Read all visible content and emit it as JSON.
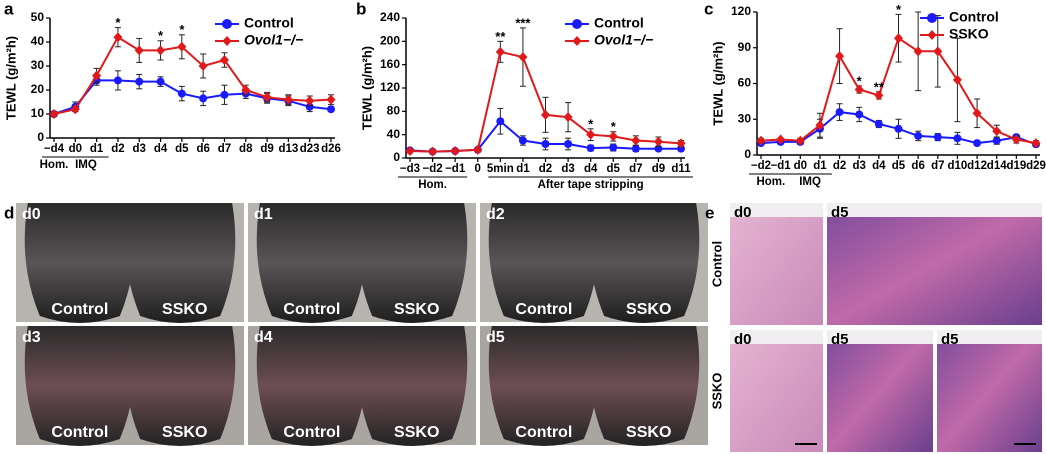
{
  "chart_data": [
    {
      "type": "line",
      "panel": "a",
      "ylabel": "TEWL (g/m²h)",
      "categories": [
        "−d4",
        "d0",
        "d1",
        "d2",
        "d3",
        "d4",
        "d5",
        "d6",
        "d7",
        "d8",
        "d9",
        "d13",
        "d23",
        "d26"
      ],
      "x_groups": [
        {
          "label": "Hom.",
          "from": 0,
          "to": 0
        },
        {
          "label": "IMQ",
          "from": 1,
          "to": 2
        }
      ],
      "ylim": [
        0,
        50
      ],
      "yticks": [
        0,
        10,
        20,
        30,
        40,
        50
      ],
      "legend": "upper right",
      "series": [
        {
          "name": "Control",
          "color": "#1a1aff",
          "marker": "circle",
          "font_style": "normal",
          "values": [
            10,
            13,
            24,
            24,
            23.5,
            23.5,
            18.5,
            16.5,
            18,
            18.5,
            16.5,
            15.5,
            13,
            12
          ],
          "errors": [
            1,
            2,
            2,
            4,
            3,
            2,
            3,
            3,
            4,
            2,
            2,
            2,
            2,
            1
          ]
        },
        {
          "name": "Ovol1−/−",
          "color": "#e01a1a",
          "marker": "diamond",
          "font_style": "italic",
          "values": [
            10,
            12,
            26,
            42,
            36.5,
            36.5,
            38,
            30,
            32.5,
            20,
            17,
            16,
            15.5,
            16
          ],
          "errors": [
            1,
            1,
            3,
            4,
            5,
            4,
            5,
            5,
            3,
            2,
            2,
            2,
            2,
            2
          ]
        }
      ],
      "annotations": [
        {
          "text": "*",
          "category": 3
        },
        {
          "text": "*",
          "category": 5
        },
        {
          "text": "*",
          "category": 6
        }
      ]
    },
    {
      "type": "line",
      "panel": "b",
      "ylabel": "TEWL (g/m²h)",
      "categories": [
        "−d3",
        "−d2",
        "−d1",
        "0",
        "5min",
        "d1",
        "d2",
        "d3",
        "d4",
        "d5",
        "d7",
        "d9",
        "d11"
      ],
      "x_groups": [
        {
          "label": "Hom.",
          "from": 0,
          "to": 2
        },
        {
          "label": "After tape stripping",
          "from": 4,
          "to": 12
        }
      ],
      "ylim": [
        0,
        240
      ],
      "yticks": [
        0,
        40,
        80,
        120,
        160,
        200,
        240
      ],
      "legend": "upper right",
      "series": [
        {
          "name": "Control",
          "color": "#1a1aff",
          "marker": "circle",
          "font_style": "normal",
          "values": [
            13,
            11,
            12,
            14,
            63,
            30,
            24,
            24,
            17,
            18,
            16,
            16,
            16
          ],
          "errors": [
            2,
            1,
            1,
            1,
            22,
            8,
            10,
            10,
            5,
            6,
            5,
            3,
            3
          ]
        },
        {
          "name": "Ovol1−/−",
          "color": "#e01a1a",
          "marker": "diamond",
          "font_style": "italic",
          "values": [
            12,
            11,
            12,
            14,
            182,
            173,
            74,
            70,
            40,
            37,
            30,
            28,
            25
          ],
          "errors": [
            2,
            1,
            1,
            1,
            18,
            50,
            30,
            25,
            10,
            8,
            8,
            8,
            5
          ]
        }
      ],
      "annotations": [
        {
          "text": "**",
          "category": 4
        },
        {
          "text": "***",
          "category": 5
        },
        {
          "text": "*",
          "category": 8
        },
        {
          "text": "*",
          "category": 9
        }
      ]
    },
    {
      "type": "line",
      "panel": "c",
      "ylabel": "TEWL (g/m²h)",
      "categories": [
        "−d2",
        "−d1",
        "d0",
        "d1",
        "d2",
        "d3",
        "d4",
        "d5",
        "d6",
        "d7",
        "d10",
        "d12",
        "d14",
        "d19",
        "d29"
      ],
      "x_groups": [
        {
          "label": "Hom.",
          "from": 0,
          "to": 1
        },
        {
          "label": "IMQ",
          "from": 2,
          "to": 3
        }
      ],
      "ylim": [
        0,
        120
      ],
      "yticks": [
        0,
        30,
        60,
        90,
        120
      ],
      "legend": "upper right",
      "series": [
        {
          "name": "Control",
          "color": "#1a1aff",
          "marker": "circle",
          "font_style": "normal",
          "values": [
            10,
            11,
            11,
            22,
            36,
            34,
            26,
            22,
            16,
            15,
            14,
            10,
            12,
            15,
            9
          ],
          "errors": [
            2,
            1,
            2,
            8,
            7,
            6,
            3,
            8,
            4,
            3,
            5,
            2,
            3,
            2,
            1
          ]
        },
        {
          "name": "SSKO",
          "color": "#e01a1a",
          "marker": "diamond",
          "font_style": "normal",
          "values": [
            12,
            13,
            12,
            25,
            83,
            55,
            50,
            98,
            87,
            87,
            63,
            35,
            20,
            13,
            10
          ],
          "errors": [
            2,
            1,
            2,
            10,
            23,
            3,
            3,
            20,
            33,
            30,
            35,
            12,
            5,
            3,
            2
          ]
        }
      ],
      "annotations": [
        {
          "text": "*",
          "category": 5
        },
        {
          "text": "**",
          "category": 6
        },
        {
          "text": "*",
          "category": 7
        }
      ]
    }
  ],
  "panel_d": {
    "label": "d",
    "tiles": [
      {
        "day": "d0",
        "left": "Control",
        "right": "SSKO"
      },
      {
        "day": "d1",
        "left": "Control",
        "right": "SSKO"
      },
      {
        "day": "d2",
        "left": "Control",
        "right": "SSKO"
      },
      {
        "day": "d3",
        "left": "Control",
        "right": "SSKO"
      },
      {
        "day": "d4",
        "left": "Control",
        "right": "SSKO"
      },
      {
        "day": "d5",
        "left": "Control",
        "right": "SSKO"
      }
    ]
  },
  "panel_e": {
    "label": "e",
    "rows": [
      {
        "label": "Control",
        "tiles": [
          "d0",
          "d5"
        ]
      },
      {
        "label": "SSKO",
        "tiles": [
          "d0",
          "d5",
          "d5"
        ]
      }
    ]
  }
}
